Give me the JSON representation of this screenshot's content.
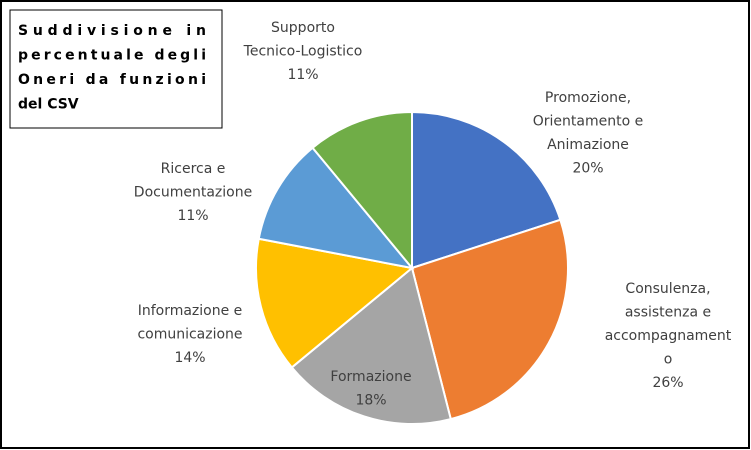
{
  "chart_data": {
    "type": "pie",
    "title": "Suddivisione in\npercentuale degli\nOneri da funzioni\ndel CSV",
    "categories": [
      "Promozione,\nOrientamento e\nAnimazione",
      "Consulenza,\nassistenza e\naccompagnament\no",
      "Formazione",
      "Informazione e\ncomunicazione",
      "Ricerca e\nDocumentazione",
      "Supporto\nTecnico-Logistico"
    ],
    "values": [
      20,
      26,
      18,
      14,
      11,
      11
    ],
    "value_labels": [
      "20%",
      "26%",
      "18%",
      "14%",
      "11%",
      "11%"
    ],
    "colors": [
      "#4472c4",
      "#ed7d31",
      "#a5a5a5",
      "#ffc000",
      "#5b9bd5",
      "#70ad47"
    ]
  }
}
